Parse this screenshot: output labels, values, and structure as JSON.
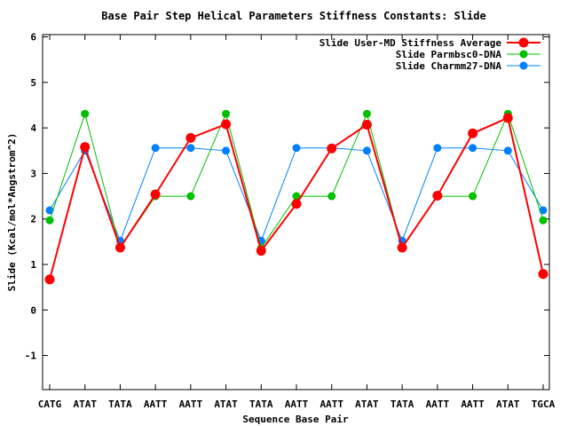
{
  "chart_data": {
    "type": "line",
    "title": "Base Pair Step Helical Parameters Stiffness Constants: Slide",
    "xlabel": "Sequence Base Pair",
    "ylabel": "Slide (Kcal/mol*Angstrom^2)",
    "categories": [
      "CATG",
      "ATAT",
      "TATA",
      "AATT",
      "AATT",
      "ATAT",
      "TATA",
      "AATT",
      "AATT",
      "ATAT",
      "TATA",
      "AATT",
      "AATT",
      "ATAT",
      "TGCA"
    ],
    "ylim": [
      -1.75,
      6.05
    ],
    "yticks": [
      -1,
      0,
      1,
      2,
      3,
      4,
      5,
      6
    ],
    "legend_position": "top-right",
    "grid": false,
    "series": [
      {
        "name": "Slide User-MD Stiffness Average",
        "color": "#ff0000",
        "values": [
          0.67,
          3.58,
          1.37,
          2.54,
          3.78,
          4.08,
          1.3,
          2.33,
          3.55,
          4.07,
          1.37,
          2.51,
          3.88,
          4.22,
          0.79
        ]
      },
      {
        "name": "Slide Parmbsc0-DNA",
        "color": "#00c000",
        "values": [
          1.97,
          4.31,
          1.36,
          2.5,
          2.5,
          4.31,
          1.36,
          2.5,
          2.5,
          4.31,
          1.36,
          2.5,
          2.5,
          4.31,
          1.97
        ]
      },
      {
        "name": "Slide Charmm27-DNA",
        "color": "#0080ff",
        "values": [
          2.19,
          3.5,
          1.52,
          3.56,
          3.56,
          3.5,
          1.52,
          3.56,
          3.56,
          3.5,
          1.52,
          3.56,
          3.56,
          3.5,
          2.19
        ]
      }
    ]
  }
}
